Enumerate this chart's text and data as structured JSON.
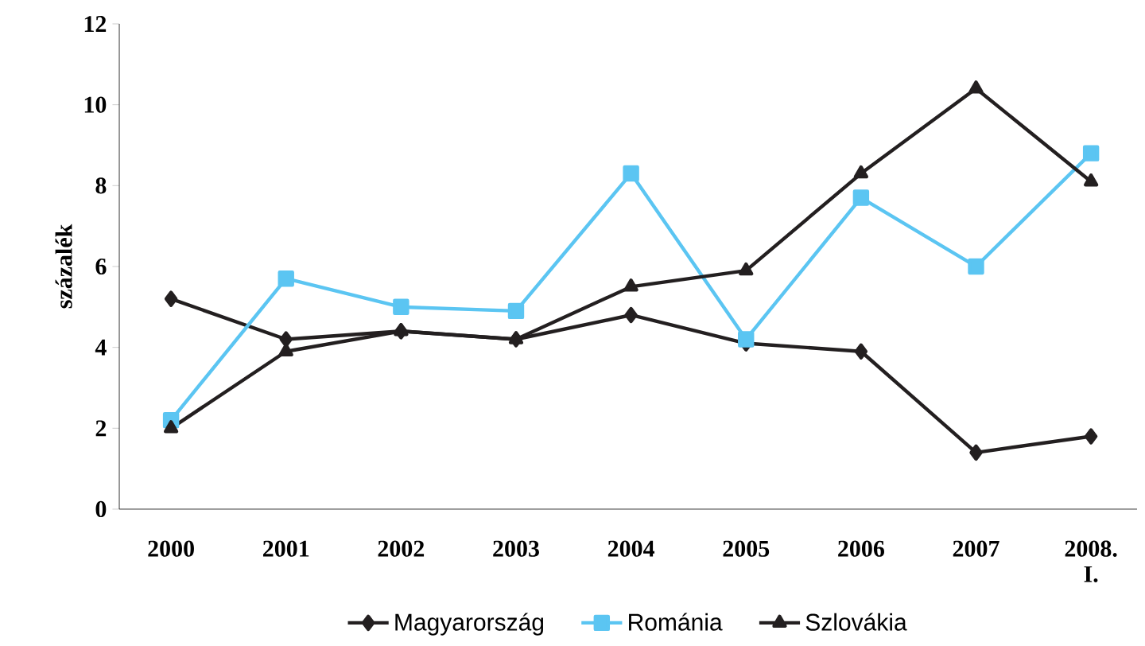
{
  "chart_data": {
    "type": "line",
    "ylabel": "százalék",
    "categories": [
      "2000",
      "2001",
      "2002",
      "2003",
      "2004",
      "2005",
      "2006",
      "2007",
      "2008. I."
    ],
    "series": [
      {
        "name": "Magyarország",
        "color": "#231f20",
        "marker": "diamond",
        "values": [
          5.2,
          4.2,
          4.4,
          4.2,
          4.8,
          4.1,
          3.9,
          1.4,
          1.8
        ]
      },
      {
        "name": "Románia",
        "color": "#5bc5f2",
        "marker": "square",
        "values": [
          2.2,
          5.7,
          5.0,
          4.9,
          8.3,
          4.2,
          7.7,
          6.0,
          8.8
        ]
      },
      {
        "name": "Szlovákia",
        "color": "#231f20",
        "marker": "triangle",
        "values": [
          2.0,
          3.9,
          4.4,
          4.2,
          5.5,
          5.9,
          8.3,
          10.4,
          8.1
        ]
      }
    ],
    "ylim": [
      0,
      12
    ],
    "yticks": [
      0,
      2,
      4,
      6,
      8,
      10,
      12
    ],
    "grid": false,
    "legend": "bottom",
    "line_style": "solid"
  }
}
